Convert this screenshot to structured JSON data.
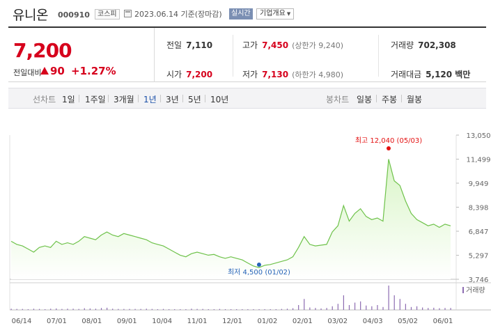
{
  "header": {
    "name": "유니온",
    "code": "000910",
    "market": "코스피",
    "date": "2023.06.14 기준(장마감)",
    "realtime_label": "실시간",
    "company_label": "기업개요"
  },
  "quote": {
    "price": "7,200",
    "change_label": "전일대비",
    "change": "90",
    "change_pct": "+1.27%",
    "prev_label": "전일",
    "prev": "7,110",
    "high_label": "고가",
    "high": "7,450",
    "upper_limit": "(상한가 9,240)",
    "volume_label": "거래량",
    "volume": "702,308",
    "open_label": "시가",
    "open": "7,200",
    "low_label": "저가",
    "low": "7,130",
    "lower_limit": "(하한가 4,980)",
    "amount_label": "거래대금",
    "amount": "5,120 백만"
  },
  "nav": {
    "line_title": "선차트",
    "periods": [
      "1일",
      "1주일",
      "3개월",
      "1년",
      "3년",
      "5년",
      "10년"
    ],
    "active_period": "1년",
    "candle_title": "봉차트",
    "candles": [
      "일봉",
      "주봉",
      "월봉"
    ]
  },
  "colors": {
    "up": "#d6001c",
    "line": "#6ec24a",
    "fill_top": "#d9f5c7",
    "volume": "#8c6bb1",
    "low_marker": "#2563b8",
    "high_marker": "#e41010"
  },
  "chart_data": {
    "type": "area",
    "y_ticks": [
      "13,050",
      "11,499",
      "9,949",
      "8,398",
      "6,847",
      "5,297",
      "3,746"
    ],
    "ylim": [
      3746,
      13050
    ],
    "x_ticks": [
      "06/14",
      "07/01",
      "08/01",
      "09/01",
      "10/04",
      "11/01",
      "12/01",
      "01/02",
      "02/01",
      "03/02",
      "04/03",
      "05/02",
      "06/01"
    ],
    "high_label": "최고 12,040 (05/03)",
    "low_label": "최저 4,500 (01/02)",
    "volume_legend": "거래량",
    "series": [
      {
        "values": [
          6200,
          6000,
          5900,
          5700,
          5500,
          5800,
          5900,
          5800,
          6200,
          6000,
          6100,
          6000,
          6200,
          6500,
          6400,
          6300,
          6600,
          6800,
          6600,
          6500,
          6700,
          6600,
          6500,
          6400,
          6300,
          6100,
          6000,
          5900,
          5700,
          5500,
          5300,
          5200,
          5400,
          5500,
          5400,
          5300,
          5350,
          5200,
          5100,
          5200,
          5100,
          5000,
          4800,
          4600,
          4500,
          4650,
          4700,
          4800,
          4900,
          5000,
          5200,
          5800,
          6500,
          6000,
          5900,
          5950,
          6000,
          6800,
          7200,
          8500,
          7500,
          8000,
          8300,
          7800,
          7600,
          7700,
          7500,
          11500,
          10100,
          9800,
          8800,
          8000,
          7600,
          7400,
          7200,
          7300,
          7100,
          7300,
          7200
        ]
      }
    ],
    "volume": [
      0.05,
      0.04,
      0.04,
      0.03,
      0.05,
      0.04,
      0.03,
      0.05,
      0.06,
      0.04,
      0.05,
      0.05,
      0.04,
      0.07,
      0.06,
      0.05,
      0.08,
      0.09,
      0.05,
      0.04,
      0.04,
      0.04,
      0.04,
      0.04,
      0.05,
      0.04,
      0.03,
      0.04,
      0.03,
      0.03,
      0.02,
      0.03,
      0.05,
      0.04,
      0.04,
      0.03,
      0.03,
      0.04,
      0.03,
      0.03,
      0.03,
      0.02,
      0.02,
      0.02,
      0.02,
      0.03,
      0.03,
      0.03,
      0.04,
      0.05,
      0.07,
      0.2,
      0.45,
      0.1,
      0.08,
      0.06,
      0.08,
      0.15,
      0.25,
      0.6,
      0.2,
      0.3,
      0.35,
      0.18,
      0.15,
      0.2,
      0.12,
      1.0,
      0.6,
      0.45,
      0.25,
      0.12,
      0.15,
      0.1,
      0.08,
      0.09,
      0.07,
      0.08,
      0.08
    ]
  }
}
